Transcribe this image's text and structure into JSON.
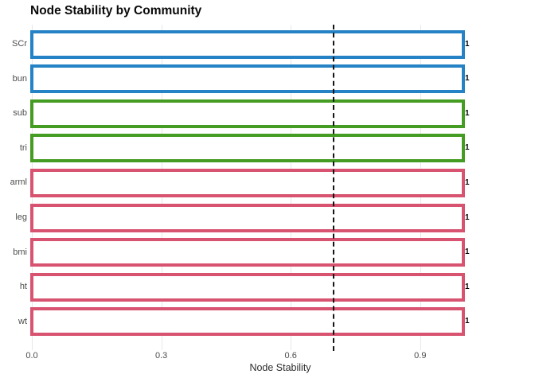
{
  "chart_data": {
    "type": "bar",
    "orientation": "horizontal",
    "title": "Node Stability by Community",
    "xlabel": "Node Stability",
    "ylabel": "",
    "categories": [
      "SCr",
      "bun",
      "sub",
      "tri",
      "arml",
      "leg",
      "bmi",
      "ht",
      "wt"
    ],
    "values": [
      1,
      1,
      1,
      1,
      1,
      1,
      1,
      1,
      1
    ],
    "value_labels": [
      "1",
      "1",
      "1",
      "1",
      "1",
      "1",
      "1",
      "1",
      "1"
    ],
    "bar_outline_colors": [
      "#2482C5",
      "#2482C5",
      "#459C22",
      "#459C22",
      "#D8536F",
      "#D8536F",
      "#D8536F",
      "#D8536F",
      "#D8536F"
    ],
    "community_colors": {
      "blue": "#2482C5",
      "green": "#459C22",
      "pink": "#D8536F"
    },
    "bar_fill": "#FFFFFF",
    "x_ticks": [
      0.0,
      0.3,
      0.6,
      0.9
    ],
    "x_tick_labels": [
      "0.0",
      "0.3",
      "0.6",
      "0.9"
    ],
    "xlim": [
      0,
      1.15
    ],
    "reference_line": {
      "value": 0.7,
      "color": "#141414",
      "style": "dashed"
    },
    "grid": {
      "show": true,
      "color": "#E8E8E8"
    },
    "legend_position": "none",
    "text_color": "#4D4D4D",
    "title_color": "#0A0A0A"
  }
}
